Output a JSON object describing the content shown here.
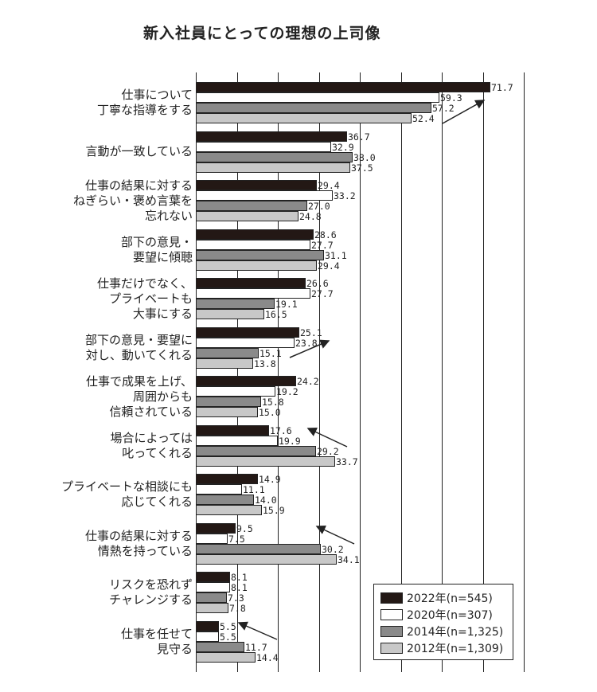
{
  "chart_data": {
    "type": "bar",
    "orientation": "horizontal",
    "title": "新入社員にとっての理想の上司像",
    "xlabel": "",
    "ylabel": "",
    "xlim": [
      0,
      80
    ],
    "grid": true,
    "grid_step": 10,
    "legend_position": "lower-right (inside)",
    "categories": [
      "仕事について\n丁寧な指導をする",
      "言動が一致している",
      "仕事の結果に対する\nねぎらい・褒め言葉を\n忘れない",
      "部下の意見・\n要望に傾聴",
      "仕事だけでなく、\nプライベートも\n大事にする",
      "部下の意見・要望に\n対し、動いてくれる",
      "仕事で成果を上げ、\n周囲からも\n信頼されている",
      "場合によっては\n叱ってくれる",
      "プライベートな相談にも\n応じてくれる",
      "仕事の結果に対する\n情熱を持っている",
      "リスクを恐れず\nチャレンジする",
      "仕事を任せて\n見守る"
    ],
    "series": [
      {
        "name": "2022年(n=545)",
        "color": "#231815",
        "values": [
          71.7,
          36.7,
          29.4,
          28.6,
          26.6,
          25.1,
          24.2,
          17.6,
          14.9,
          9.5,
          8.1,
          5.5
        ]
      },
      {
        "name": "2020年(n=307)",
        "color": "#ffffff",
        "values": [
          59.3,
          32.9,
          33.2,
          27.7,
          27.7,
          23.8,
          19.2,
          19.9,
          11.1,
          7.5,
          8.1,
          5.5
        ]
      },
      {
        "name": "2014年(n=1,325)",
        "color": "#8a8a8a",
        "values": [
          57.2,
          38.0,
          27.0,
          31.1,
          19.1,
          15.1,
          15.8,
          29.2,
          14.0,
          30.2,
          7.3,
          11.7
        ]
      },
      {
        "name": "2012年(n=1,309)",
        "color": "#c8c8c8",
        "values": [
          52.4,
          37.5,
          24.8,
          29.4,
          16.5,
          13.8,
          15.0,
          33.7,
          15.9,
          34.1,
          7.8,
          14.4
        ]
      }
    ],
    "annotations": [
      {
        "type": "arrow",
        "category": "仕事について丁寧な指導をする",
        "direction": "up-right (increase)"
      },
      {
        "type": "arrow",
        "category": "部下の意見・要望に対し、動いてくれる",
        "direction": "up-right (increase)"
      },
      {
        "type": "arrow",
        "category": "場合によっては叱ってくれる",
        "direction": "up-left (decrease)"
      },
      {
        "type": "arrow",
        "category": "仕事の結果に対する情熱を持っている",
        "direction": "up-left (decrease)"
      },
      {
        "type": "arrow",
        "category": "仕事を任せて見守る",
        "direction": "up-left (decrease)"
      }
    ]
  },
  "title": "新入社員にとっての理想の上司像",
  "categories": [
    {
      "lines": [
        "仕事について",
        "丁寧な指導をする"
      ]
    },
    {
      "lines": [
        "言動が一致している"
      ]
    },
    {
      "lines": [
        "仕事の結果に対する",
        "ねぎらい・褒め言葉を",
        "忘れない"
      ]
    },
    {
      "lines": [
        "部下の意見・",
        "要望に傾聴"
      ]
    },
    {
      "lines": [
        "仕事だけでなく、",
        "プライベートも",
        "大事にする"
      ]
    },
    {
      "lines": [
        "部下の意見・要望に",
        "対し、動いてくれる"
      ]
    },
    {
      "lines": [
        "仕事で成果を上げ、",
        "周囲からも",
        "信頼されている"
      ]
    },
    {
      "lines": [
        "場合によっては",
        "叱ってくれる"
      ]
    },
    {
      "lines": [
        "プライベートな相談にも",
        "応じてくれる"
      ]
    },
    {
      "lines": [
        "仕事の結果に対する",
        "情熱を持っている"
      ]
    },
    {
      "lines": [
        "リスクを恐れず",
        "チャレンジする"
      ]
    },
    {
      "lines": [
        "仕事を任せて",
        "見守る"
      ]
    }
  ],
  "legend": [
    {
      "label": "2022年(n=545)",
      "color": "#231815"
    },
    {
      "label": "2020年(n=307)",
      "color": "#ffffff"
    },
    {
      "label": "2014年(n=1,325)",
      "color": "#8a8a8a"
    },
    {
      "label": "2012年(n=1,309)",
      "color": "#c8c8c8"
    }
  ]
}
